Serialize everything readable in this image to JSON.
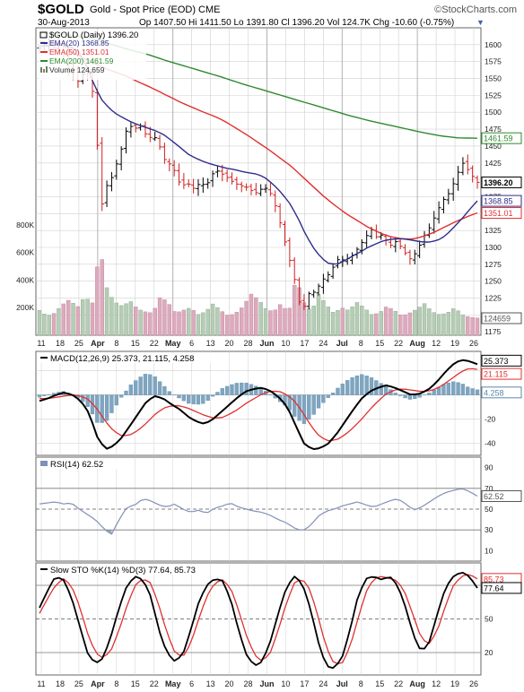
{
  "header": {
    "symbol": "$GOLD",
    "description": "Gold - Spot Price (EOD) CME",
    "date": "30-Aug-2013",
    "quote": "Op 1407.50  Hi 1411.50  Lo 1391.80  Cl 1396.20  Vol 124.7K  Chg -10.60 (-0.75%)",
    "copyright": "©StockCharts.com"
  },
  "colors": {
    "price": "#000000",
    "ema20": "#2e2e8a",
    "ema50": "#e03030",
    "ema200": "#2e8a2e",
    "volume": "#d8a6b8",
    "macd_hist": "#7fa5c0",
    "rsi_line": "#8090b8",
    "grid": "#d0d0d0"
  },
  "legend": {
    "price": "$GOLD (Daily) 1396.20",
    "ema20": "EMA(20) 1368.85",
    "ema50": "EMA(50) 1351.01",
    "ema200": "EMA(200) 1461.59",
    "volume": "Volume 124,659"
  },
  "panel_titles": {
    "macd": "MACD(12,26,9) 25.373, 21.115, 4.258",
    "rsi": "RSI(14) 62.52",
    "sto": "Slow STO %K(14) %D(3) 77.64, 85.73"
  },
  "last_value_tags": {
    "ema200": "1461.59",
    "price": "1396.20",
    "ema20": "1368.85",
    "ema50": "1351.01",
    "volume": "124659",
    "macd": "25.373",
    "macd_signal": "21.115",
    "macd_hist": "4.258",
    "rsi": "62.52",
    "sto_d": "85.73",
    "sto_k": "77.64"
  },
  "x_ticks": [
    "11",
    "18",
    "25",
    "Apr",
    "8",
    "15",
    "22",
    "May",
    "6",
    "13",
    "20",
    "28",
    "Jun",
    "10",
    "17",
    "24",
    "Jul",
    "8",
    "15",
    "22",
    "Aug",
    "12",
    "19",
    "26"
  ],
  "x_ticks_bold": [
    "Apr",
    "May",
    "Jun",
    "Jul",
    "Aug"
  ],
  "chart_data": [
    {
      "type": "line",
      "title": "$GOLD (Daily) 1396.20",
      "y_ticks": [
        1175,
        1200,
        1225,
        1250,
        1275,
        1300,
        1325,
        1350,
        1375,
        1400,
        1425,
        1450,
        1475,
        1500,
        1525,
        1550,
        1575,
        1600
      ],
      "ylim": [
        1170,
        1625
      ],
      "volume_ticks": [
        "200K",
        "400K",
        "600K",
        "800K"
      ],
      "volume_ylim": [
        0,
        1000000
      ],
      "series": [
        {
          "name": "$GOLD (Daily) 1396.20",
          "type": "ohlc",
          "anchors_close": [
            1595,
            1600,
            1605,
            1595,
            1602,
            1588,
            1560,
            1565,
            1545,
            1555,
            1560,
            1540,
            1465,
            1360,
            1390,
            1400,
            1420,
            1440,
            1470,
            1480,
            1475,
            1482,
            1470,
            1462,
            1465,
            1455,
            1432,
            1425,
            1420,
            1400,
            1390,
            1398,
            1385,
            1392,
            1395,
            1390,
            1405,
            1415,
            1410,
            1406,
            1400,
            1395,
            1392,
            1390,
            1388,
            1380,
            1382,
            1390,
            1385,
            1375,
            1350,
            1325,
            1295,
            1270,
            1240,
            1205,
            1218,
            1240,
            1230,
            1250,
            1255,
            1262,
            1275,
            1285,
            1280,
            1285,
            1290,
            1300,
            1310,
            1320,
            1328,
            1312,
            1320,
            1308,
            1302,
            1310,
            1300,
            1290,
            1282,
            1292,
            1305,
            1320,
            1330,
            1345,
            1360,
            1372,
            1380,
            1395,
            1412,
            1425,
            1415,
            1405,
            1396.2
          ]
        },
        {
          "name": "EMA(20) 1368.85",
          "values_anchors": [
            1598,
            1599,
            1600,
            1599,
            1597,
            1590,
            1570,
            1540,
            1518,
            1505,
            1496,
            1490,
            1484,
            1480,
            1476,
            1472,
            1466,
            1457,
            1448,
            1438,
            1432,
            1427,
            1423,
            1420,
            1417,
            1415,
            1412,
            1410,
            1408,
            1402,
            1392,
            1380,
            1365,
            1345,
            1320,
            1300,
            1285,
            1276,
            1275,
            1280,
            1287,
            1293,
            1300,
            1305,
            1310,
            1312,
            1313,
            1312,
            1310,
            1308,
            1308,
            1311,
            1318,
            1330,
            1342,
            1356,
            1368.85
          ]
        },
        {
          "name": "EMA(50) 1351.01",
          "values_anchors": [
            1605,
            1602,
            1600,
            1590,
            1580,
            1572,
            1565,
            1559,
            1553,
            1545,
            1538,
            1530,
            1522,
            1514,
            1507,
            1500,
            1494,
            1486,
            1476,
            1466,
            1455,
            1444,
            1432,
            1420,
            1405,
            1390,
            1375,
            1362,
            1350,
            1340,
            1330,
            1322,
            1316,
            1313,
            1312,
            1316,
            1322,
            1330,
            1338,
            1345,
            1351.01
          ]
        },
        {
          "name": "EMA(200) 1461.59",
          "values_anchors": [
            1618,
            1616,
            1613,
            1608,
            1600,
            1592,
            1585,
            1576,
            1568,
            1560,
            1552,
            1543,
            1535,
            1527,
            1519,
            1511,
            1503,
            1495,
            1488,
            1482,
            1476,
            1470,
            1465,
            1462,
            1461.59
          ]
        },
        {
          "name": "Volume 124,659",
          "values_anchors": [
            180000,
            140000,
            160000,
            220000,
            260000,
            200000,
            280000,
            230000,
            640000,
            320000,
            240000,
            210000,
            250000,
            190000,
            170000,
            160000,
            280000,
            240000,
            160000,
            180000,
            200000,
            150000,
            170000,
            230000,
            180000,
            140000,
            160000,
            210000,
            300000,
            260000,
            190000,
            170000,
            230000,
            160000,
            420000,
            240000,
            170000,
            300000,
            220000,
            160000,
            200000,
            180000,
            240000,
            200000,
            150000,
            160000,
            210000,
            180000,
            140000,
            160000,
            190000,
            230000,
            170000,
            150000,
            160000,
            200000,
            150000,
            130000,
            124659
          ]
        }
      ]
    },
    {
      "type": "line",
      "title": "MACD(12,26,9) 25.373, 21.115, 4.258",
      "y_ticks": [
        -40,
        -20,
        0,
        20
      ],
      "ylim": [
        -50,
        36
      ],
      "series": [
        {
          "name": "MACD(12,26,9) 25.373",
          "values_anchors": [
            -5,
            -3,
            0,
            2,
            0,
            -5,
            -15,
            -35,
            -45,
            -42,
            -35,
            -25,
            -15,
            -5,
            -1,
            -3,
            -8,
            -12,
            -18,
            -22,
            -24,
            -20,
            -14,
            -8,
            -2,
            3,
            5,
            6,
            3,
            -2,
            -10,
            -25,
            -40,
            -45,
            -44,
            -40,
            -32,
            -22,
            -12,
            -3,
            3,
            6,
            8,
            6,
            3,
            0,
            1,
            4,
            10,
            18,
            25,
            29,
            28,
            25.373
          ]
        },
        {
          "name": "21.115",
          "values_anchors": [
            -3,
            -3,
            -2,
            -1,
            0,
            -1,
            -4,
            -12,
            -22,
            -30,
            -34,
            -33,
            -29,
            -23,
            -16,
            -11,
            -9,
            -9,
            -11,
            -14,
            -17,
            -19,
            -19,
            -16,
            -12,
            -7,
            -3,
            1,
            3,
            3,
            0,
            -6,
            -16,
            -27,
            -35,
            -38,
            -37,
            -33,
            -27,
            -20,
            -12,
            -5,
            1,
            4,
            5,
            4,
            3,
            3,
            5,
            9,
            14,
            19,
            22,
            21.115
          ]
        },
        {
          "name": "4.258",
          "values_anchors": [
            -2,
            0,
            2,
            3,
            0,
            -4,
            -11,
            -23,
            -23,
            -12,
            -1,
            8,
            14,
            18,
            15,
            8,
            1,
            -3,
            -7,
            -8,
            -7,
            -1,
            5,
            8,
            10,
            10,
            8,
            5,
            0,
            -5,
            -10,
            -19,
            -24,
            -18,
            -9,
            -2,
            5,
            11,
            15,
            17,
            15,
            11,
            7,
            2,
            -2,
            -4,
            -2,
            1,
            5,
            9,
            11,
            10,
            6,
            4.258
          ]
        }
      ]
    },
    {
      "type": "line",
      "title": "RSI(14) 62.52",
      "y_ticks": [
        10,
        30,
        50,
        70,
        90
      ],
      "ylim": [
        0,
        100
      ],
      "reference_lines": [
        30,
        50,
        70
      ],
      "series": [
        {
          "name": "RSI(14) 62.52",
          "values_anchors": [
            55,
            56,
            57,
            55,
            56,
            50,
            45,
            40,
            32,
            25,
            40,
            52,
            54,
            60,
            58,
            54,
            52,
            55,
            50,
            47,
            49,
            46,
            51,
            53,
            56,
            52,
            50,
            48,
            47,
            44,
            40,
            37,
            32,
            29,
            34,
            43,
            48,
            50,
            53,
            55,
            57,
            54,
            52,
            55,
            58,
            60,
            55,
            49,
            52,
            57,
            62,
            66,
            68,
            70,
            67,
            62.52
          ]
        }
      ]
    },
    {
      "type": "line",
      "title": "Slow STO %K(14) %D(3) 77.64, 85.73",
      "y_ticks": [
        20,
        50,
        80
      ],
      "ylim": [
        0,
        100
      ],
      "reference_lines": [
        20,
        50,
        80
      ],
      "series": [
        {
          "name": "%K(14) 77.64",
          "values_anchors": [
            60,
            75,
            88,
            85,
            70,
            45,
            20,
            10,
            15,
            35,
            60,
            80,
            88,
            85,
            70,
            40,
            20,
            12,
            18,
            40,
            65,
            80,
            86,
            84,
            68,
            40,
            18,
            8,
            12,
            30,
            55,
            78,
            88,
            82,
            60,
            30,
            8,
            6,
            15,
            40,
            70,
            86,
            88,
            85,
            88,
            80,
            60,
            35,
            20,
            30,
            55,
            78,
            88,
            92,
            88,
            77.64
          ]
        },
        {
          "name": "%D(3) 85.73",
          "values_anchors": [
            55,
            68,
            80,
            86,
            80,
            62,
            38,
            20,
            15,
            22,
            40,
            62,
            80,
            86,
            82,
            62,
            38,
            20,
            16,
            28,
            50,
            70,
            82,
            85,
            78,
            58,
            35,
            18,
            12,
            20,
            40,
            64,
            82,
            86,
            76,
            52,
            25,
            10,
            10,
            25,
            50,
            74,
            86,
            88,
            86,
            84,
            72,
            52,
            32,
            28,
            40,
            62,
            80,
            88,
            90,
            85.73
          ]
        }
      ]
    }
  ]
}
